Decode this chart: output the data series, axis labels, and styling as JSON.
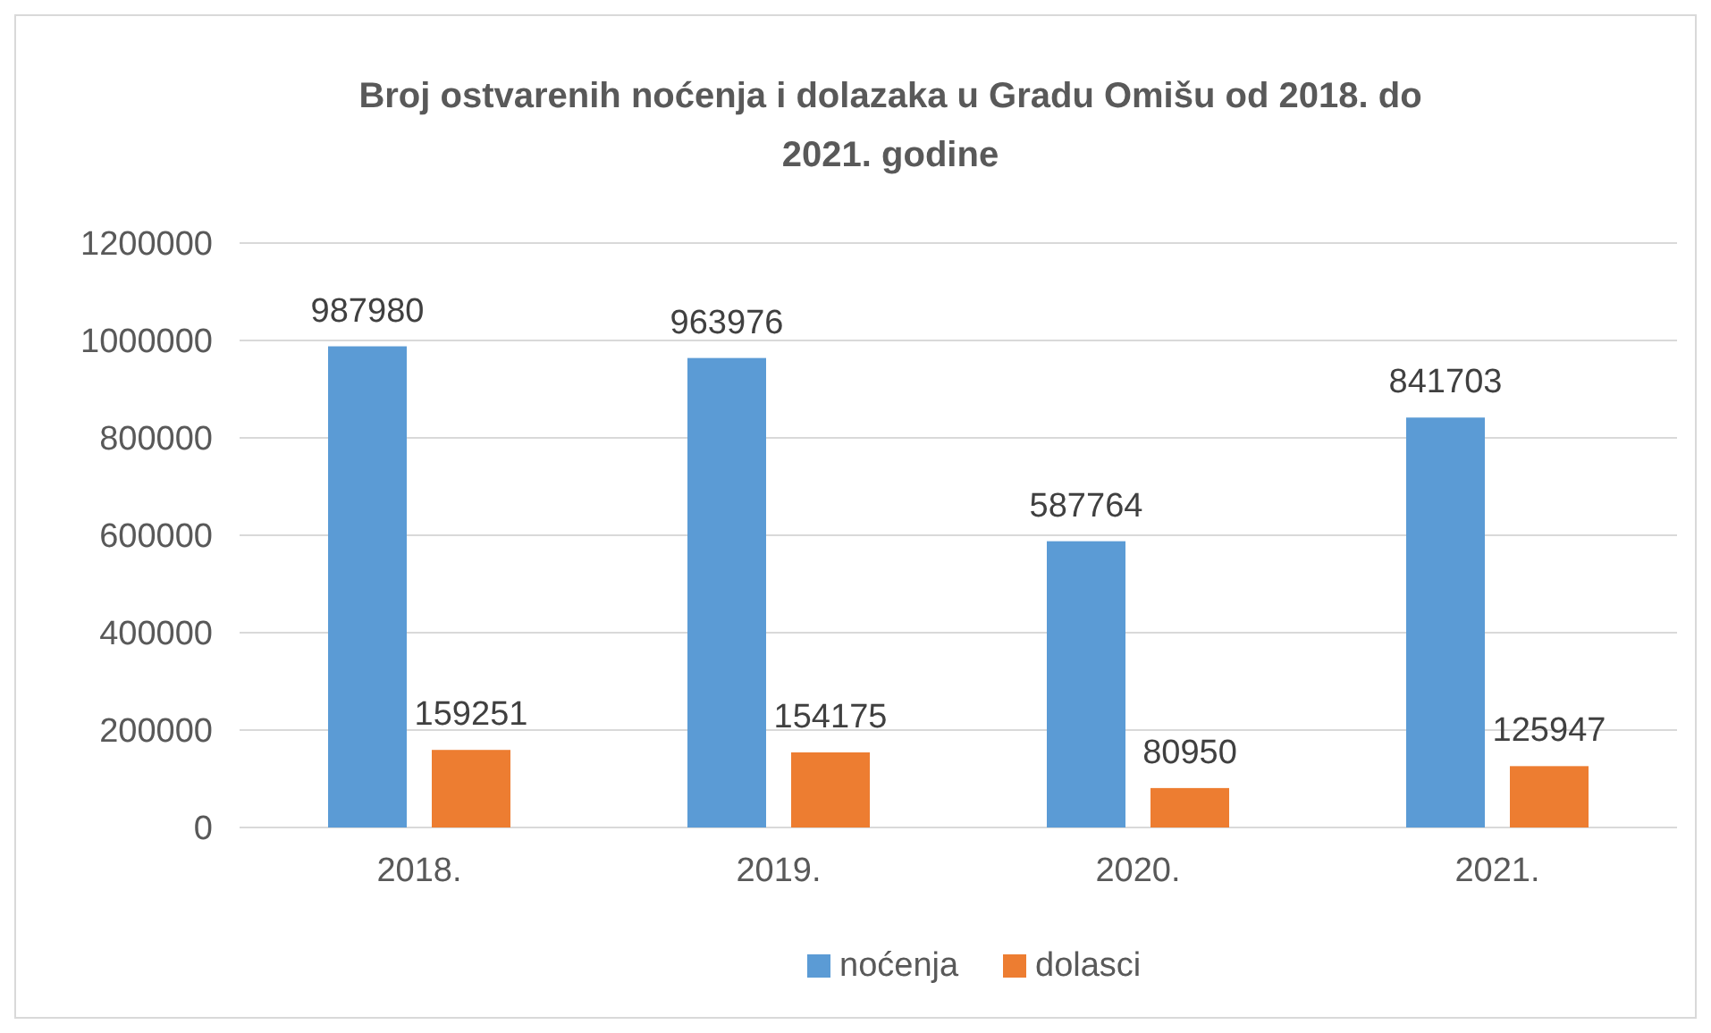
{
  "chart_data": {
    "type": "bar",
    "title": "Broj ostvarenih noćenja i dolazaka u Gradu Omišu od 2018. do 2021. godine",
    "categories": [
      "2018.",
      "2019.",
      "2020.",
      "2021."
    ],
    "series": [
      {
        "name": "noćenja",
        "color": "#5b9bd5",
        "values": [
          987980,
          963976,
          587764,
          841703
        ]
      },
      {
        "name": "dolasci",
        "color": "#ed7d31",
        "values": [
          159251,
          154175,
          80950,
          125947
        ]
      }
    ],
    "ylim": [
      0,
      1200000
    ],
    "yticks": [
      0,
      200000,
      400000,
      600000,
      800000,
      1000000,
      1200000
    ],
    "grid": "y",
    "legend": "bottom",
    "data_labels": true
  }
}
